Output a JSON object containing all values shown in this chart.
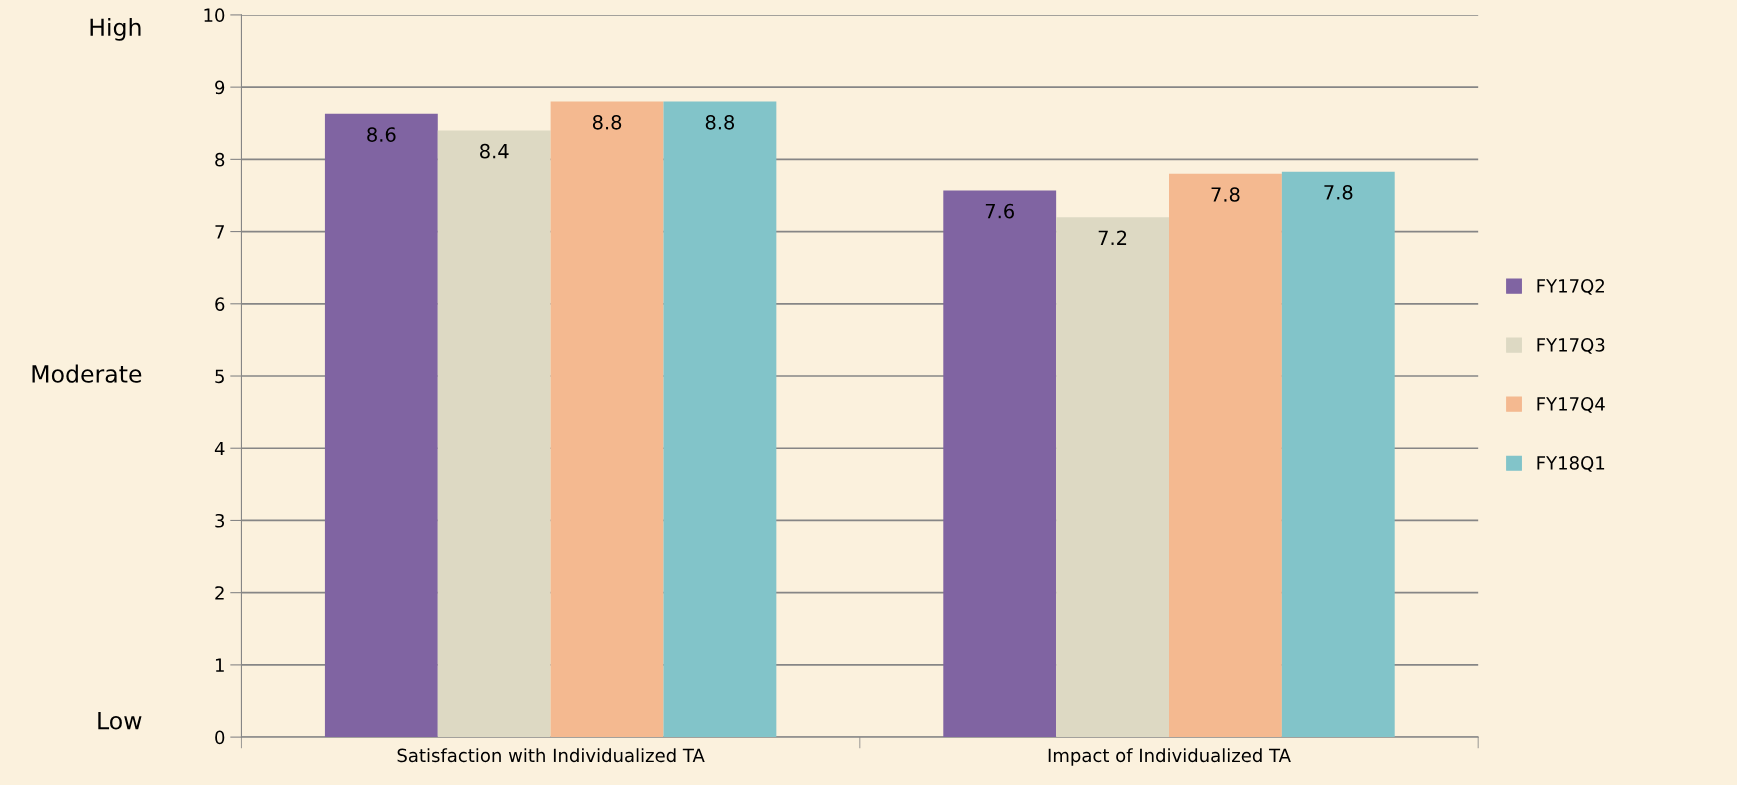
{
  "chart_data": {
    "type": "bar",
    "categories": [
      "Satisfaction with Individualized TA",
      "Impact of Individualized TA"
    ],
    "series": [
      {
        "name": "FY17Q2",
        "color": "#8064a2",
        "values": [
          8.63,
          7.57
        ],
        "value_labels": [
          "8.6",
          "7.6"
        ]
      },
      {
        "name": "FY17Q3",
        "color": "#ddd9c3",
        "values": [
          8.4,
          7.2
        ],
        "value_labels": [
          "8.4",
          "7.2"
        ]
      },
      {
        "name": "FY17Q4",
        "color": "#f4b990",
        "values": [
          8.8,
          7.8
        ],
        "value_labels": [
          "8.8",
          "7.8"
        ]
      },
      {
        "name": "FY18Q1",
        "color": "#82c4c9",
        "values": [
          8.8,
          7.83
        ],
        "value_labels": [
          "8.8",
          "7.8"
        ]
      }
    ],
    "ylim": [
      0,
      10
    ],
    "yticks": [
      0,
      1,
      2,
      3,
      4,
      5,
      6,
      7,
      8,
      9,
      10
    ],
    "grid": "y",
    "legend": "right",
    "annotations": [
      "High",
      "Moderate",
      "Low"
    ]
  }
}
